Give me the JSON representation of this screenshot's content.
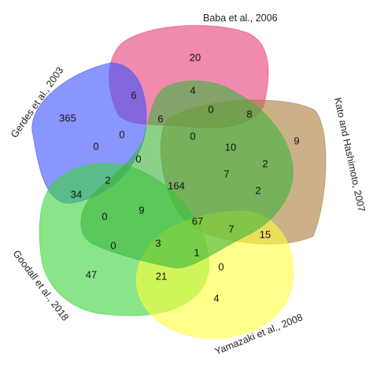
{
  "sets": [
    {
      "id": "baba",
      "label": "Baba et al., 2006",
      "color": "#e63c78"
    },
    {
      "id": "gerdes",
      "label": "Gerdes et al., 2003",
      "color": "#3c50ff"
    },
    {
      "id": "kato",
      "label": "Kato and Hashimoto, 2007",
      "color": "#a87c3c"
    },
    {
      "id": "goodall",
      "label": "Goodall et al., 2018",
      "color": "#3cd43c"
    },
    {
      "id": "yamazaki",
      "label": "Yamazaki et al., 2008",
      "color": "#ffff3c"
    },
    {
      "id": "center",
      "label": "",
      "color": "#3cb43c"
    }
  ],
  "regions": [
    {
      "value": "20"
    },
    {
      "value": "365"
    },
    {
      "value": "6"
    },
    {
      "value": "4"
    },
    {
      "value": "0"
    },
    {
      "value": "8"
    },
    {
      "value": "9"
    },
    {
      "value": "6"
    },
    {
      "value": "0"
    },
    {
      "value": "0"
    },
    {
      "value": "0"
    },
    {
      "value": "10"
    },
    {
      "value": "0"
    },
    {
      "value": "2"
    },
    {
      "value": "2"
    },
    {
      "value": "164"
    },
    {
      "value": "7"
    },
    {
      "value": "34"
    },
    {
      "value": "2"
    },
    {
      "value": "0"
    },
    {
      "value": "9"
    },
    {
      "value": "67"
    },
    {
      "value": "7"
    },
    {
      "value": "15"
    },
    {
      "value": "0"
    },
    {
      "value": "3"
    },
    {
      "value": "1"
    },
    {
      "value": "47"
    },
    {
      "value": "21"
    },
    {
      "value": "0"
    },
    {
      "value": "4"
    }
  ]
}
